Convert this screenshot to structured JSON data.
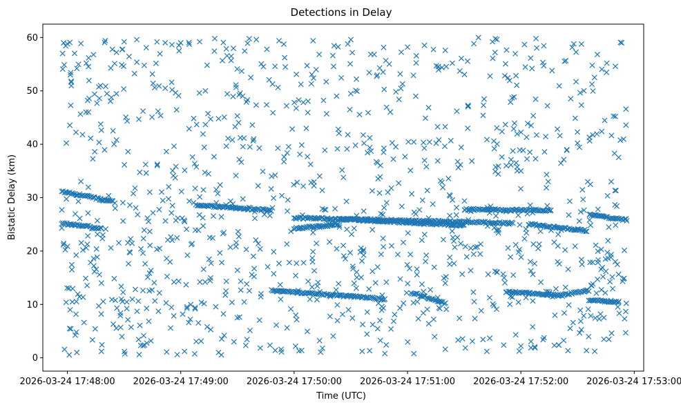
{
  "chart_data": {
    "type": "scatter",
    "title": "Detections in Delay",
    "xlabel": "Time (UTC)",
    "ylabel": "Bistatic Delay (km)",
    "marker": "x",
    "color": "#1f77b4",
    "grid": false,
    "xlim": [
      "2026-03-24 17:47:47",
      "2026-03-24 17:53:05"
    ],
    "ylim": [
      -2.5,
      62.5
    ],
    "x_ticks": [
      "2026-03-24 17:48:00",
      "2026-03-24 17:49:00",
      "2026-03-24 17:50:00",
      "2026-03-24 17:51:00",
      "2026-03-24 17:52:00",
      "2026-03-24 17:53:00"
    ],
    "y_ticks": [
      0,
      10,
      20,
      30,
      40,
      50,
      60
    ],
    "x_range": [
      "2026-03-24 17:47:57",
      "2026-03-24 17:52:56"
    ],
    "tracks": [
      {
        "from": [
          "17:47:57",
          31.2
        ],
        "to": [
          "17:48:24",
          29.2
        ]
      },
      {
        "from": [
          "17:47:57",
          25.2
        ],
        "to": [
          "17:48:12",
          24.6
        ]
      },
      {
        "from": [
          "17:48:12",
          24.4
        ],
        "to": [
          "17:48:18",
          24.2
        ]
      },
      {
        "from": [
          "17:49:08",
          28.6
        ],
        "to": [
          "17:49:48",
          27.6
        ]
      },
      {
        "from": [
          "17:49:48",
          12.6
        ],
        "to": [
          "17:50:48",
          11.0
        ]
      },
      {
        "from": [
          "17:50:00",
          24.2
        ],
        "to": [
          "17:50:24",
          25.0
        ]
      },
      {
        "from": [
          "17:50:00",
          26.2
        ],
        "to": [
          "17:51:56",
          25.2
        ]
      },
      {
        "from": [
          "17:50:24",
          26.0
        ],
        "to": [
          "17:51:30",
          24.8
        ]
      },
      {
        "from": [
          "17:51:02",
          12.2
        ],
        "to": [
          "17:51:20",
          10.2
        ]
      },
      {
        "from": [
          "17:51:30",
          27.8
        ],
        "to": [
          "17:52:16",
          27.6
        ]
      },
      {
        "from": [
          "17:52:04",
          25.0
        ],
        "to": [
          "17:52:35",
          23.8
        ]
      },
      {
        "from": [
          "17:51:52",
          12.4
        ],
        "to": [
          "17:52:22",
          11.6
        ]
      },
      {
        "from": [
          "17:52:22",
          11.8
        ],
        "to": [
          "17:52:36",
          12.6
        ]
      },
      {
        "from": [
          "17:52:36",
          10.8
        ],
        "to": [
          "17:52:52",
          10.4
        ]
      },
      {
        "from": [
          "17:52:36",
          26.8
        ],
        "to": [
          "17:52:56",
          25.8
        ]
      }
    ],
    "series": [
      {
        "description": "Scatter of detections; background clutter uniformly spread over 0–60 km plus linear target tracks",
        "sample_points": [
          [
            "17:47:58",
            59.0
          ],
          [
            "17:48:00",
            58.8
          ],
          [
            "17:48:02",
            51.8
          ],
          [
            "17:48:05",
            54.2
          ],
          [
            "17:48:10",
            55.2
          ],
          [
            "17:48:20",
            59.4
          ],
          [
            "17:48:26",
            57.2
          ],
          [
            "17:48:30",
            59.2
          ],
          [
            "17:49:00",
            59.0
          ],
          [
            "17:49:10",
            59.2
          ],
          [
            "17:49:18",
            59.8
          ],
          [
            "17:49:40",
            59.6
          ],
          [
            "17:49:52",
            59.4
          ],
          [
            "17:50:10",
            59.4
          ],
          [
            "17:50:30",
            59.6
          ],
          [
            "17:51:00",
            58.2
          ],
          [
            "17:51:20",
            57.6
          ],
          [
            "17:51:45",
            59.2
          ],
          [
            "17:52:08",
            59.8
          ],
          [
            "17:52:28",
            58.8
          ],
          [
            "17:52:50",
            54.6
          ],
          [
            "17:48:05",
            1.0
          ],
          [
            "17:48:18",
            1.2
          ],
          [
            "17:48:38",
            0.6
          ],
          [
            "17:49:02",
            1.2
          ],
          [
            "17:49:20",
            1.0
          ],
          [
            "17:49:50",
            1.4
          ],
          [
            "17:50:15",
            1.8
          ],
          [
            "17:50:36",
            1.2
          ],
          [
            "17:50:48",
            0.8
          ],
          [
            "17:51:20",
            1.6
          ],
          [
            "17:51:42",
            1.2
          ],
          [
            "17:52:00",
            2.2
          ],
          [
            "17:52:20",
            2.4
          ],
          [
            "17:52:48",
            4.6
          ],
          [
            "17:48:26",
            40.8
          ],
          [
            "17:48:40",
            46.2
          ],
          [
            "17:49:20",
            44.8
          ],
          [
            "17:49:56",
            47.2
          ],
          [
            "17:50:40",
            41.2
          ],
          [
            "17:51:10",
            35.8
          ],
          [
            "17:51:40",
            45.4
          ],
          [
            "17:52:00",
            35.0
          ],
          [
            "17:52:30",
            40.2
          ],
          [
            "17:52:50",
            45.2
          ],
          [
            "17:48:10",
            20.6
          ],
          [
            "17:48:40",
            19.6
          ],
          [
            "17:49:06",
            21.4
          ],
          [
            "17:49:30",
            16.4
          ],
          [
            "17:50:05",
            17.8
          ],
          [
            "17:50:35",
            19.8
          ],
          [
            "17:51:05",
            16.6
          ],
          [
            "17:51:35",
            19.4
          ],
          [
            "17:52:05",
            18.0
          ],
          [
            "17:52:45",
            16.2
          ]
        ]
      }
    ]
  }
}
